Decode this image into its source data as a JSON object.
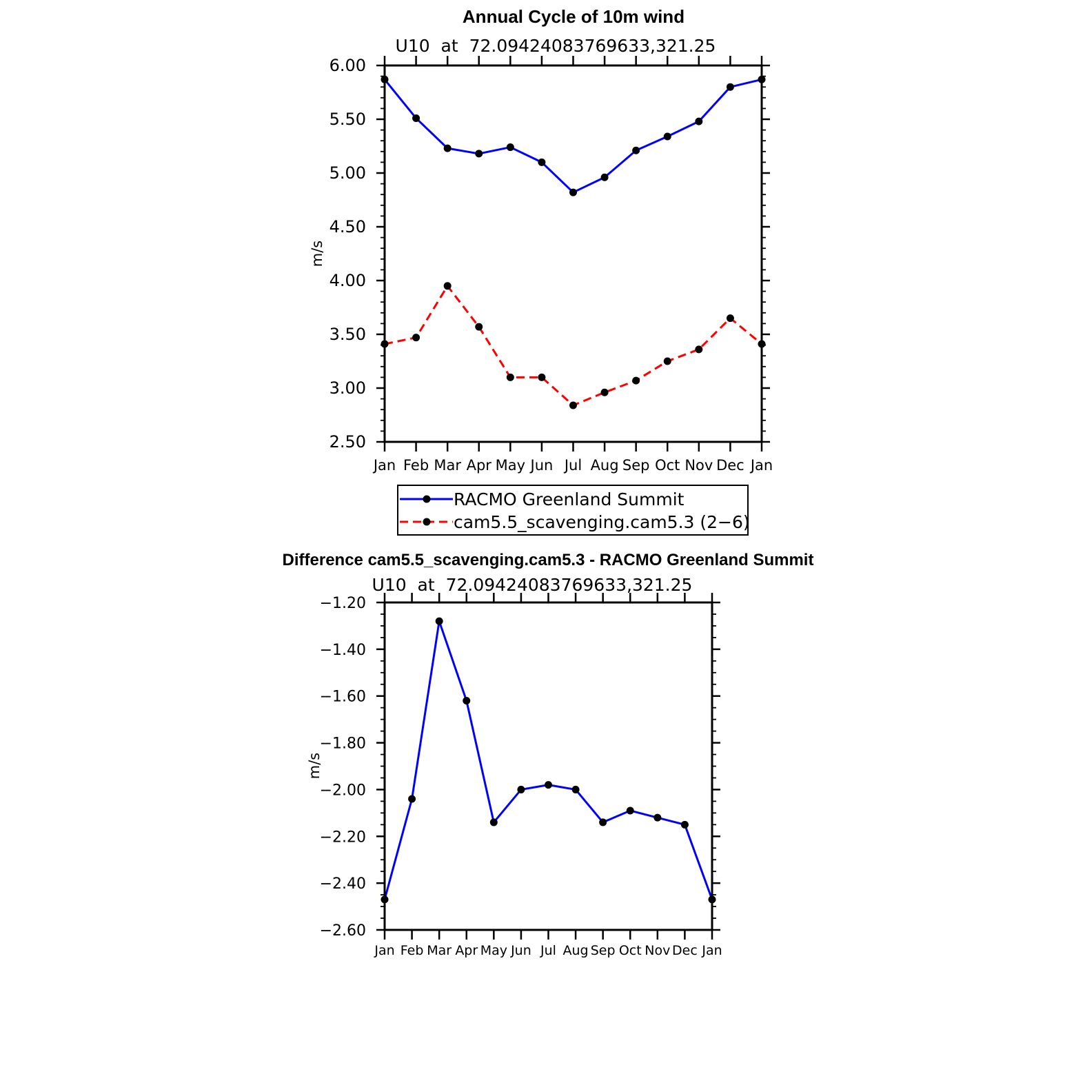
{
  "chart_data": [
    {
      "type": "line",
      "title": "Annual Cycle of 10m wind",
      "subtitle": "U10  at  72.09424083769633,321.25",
      "ylabel": "m/s",
      "xlabel": "",
      "ylim": [
        2.5,
        6.0
      ],
      "yticks": [
        "6.00",
        "5.50",
        "5.00",
        "4.50",
        "4.00",
        "3.50",
        "3.00",
        "2.50"
      ],
      "ytick_values": [
        6.0,
        5.5,
        5.0,
        4.5,
        4.0,
        3.5,
        3.0,
        2.5
      ],
      "categories": [
        "Jan",
        "Feb",
        "Mar",
        "Apr",
        "May",
        "Jun",
        "Jul",
        "Aug",
        "Sep",
        "Oct",
        "Nov",
        "Dec",
        "Jan"
      ],
      "series": [
        {
          "name": "RACMO Greenland Summit",
          "color": "#0000ff",
          "dash": "solid",
          "values": [
            5.87,
            5.51,
            5.23,
            5.18,
            5.24,
            5.1,
            4.82,
            4.96,
            5.21,
            5.34,
            5.48,
            5.8,
            5.87
          ]
        },
        {
          "name": "cam5.5_scavenging.cam5.3 (2−6)",
          "color": "#ff0000",
          "dash": "dashed",
          "values": [
            3.41,
            3.47,
            3.95,
            3.57,
            3.1,
            3.1,
            2.84,
            2.96,
            3.07,
            3.25,
            3.36,
            3.65,
            3.41
          ]
        }
      ],
      "legend": [
        "RACMO Greenland Summit",
        "cam5.5_scavenging.cam5.3 (2−6)"
      ],
      "legend_position": "bottom"
    },
    {
      "type": "line",
      "title": "Difference cam5.5_scavenging.cam5.3 - RACMO Greenland Summit",
      "subtitle": "U10  at  72.09424083769633,321.25",
      "ylabel": "m/s",
      "xlabel": "",
      "ylim": [
        -2.6,
        -1.2
      ],
      "yticks": [
        "−1.20",
        "−1.40",
        "−1.60",
        "−1.80",
        "−2.00",
        "−2.20",
        "−2.40",
        "−2.60"
      ],
      "ytick_values": [
        -1.2,
        -1.4,
        -1.6,
        -1.8,
        -2.0,
        -2.2,
        -2.4,
        -2.6
      ],
      "categories": [
        "Jan",
        "Feb",
        "Mar",
        "Apr",
        "May",
        "Jun",
        "Jul",
        "Aug",
        "Sep",
        "Oct",
        "Nov",
        "Dec",
        "Jan"
      ],
      "series": [
        {
          "name": "Difference",
          "color": "#0000ff",
          "dash": "solid",
          "values": [
            -2.47,
            -2.04,
            -1.28,
            -1.62,
            -2.14,
            -2.0,
            -1.98,
            -2.0,
            -2.14,
            -2.09,
            -2.12,
            -2.15,
            -2.47
          ]
        }
      ]
    }
  ]
}
